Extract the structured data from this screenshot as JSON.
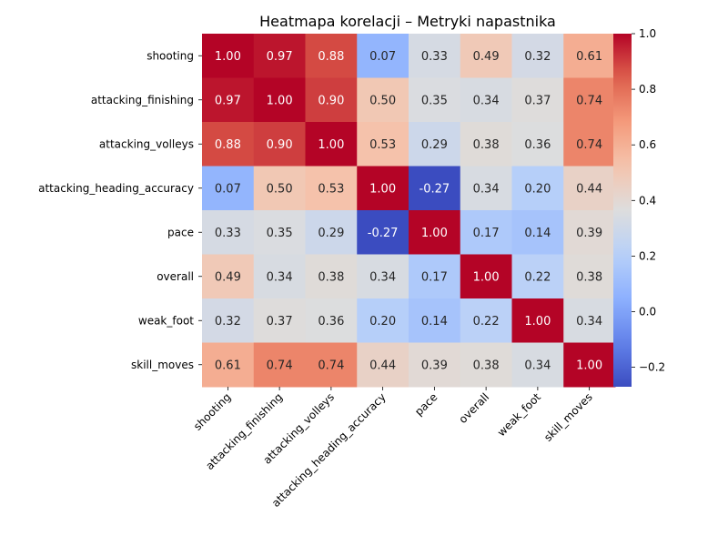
{
  "chart_data": {
    "type": "heatmap",
    "title": "Heatmapa korelacji – Metryki napastnika",
    "rows": [
      "shooting",
      "attacking_finishing",
      "attacking_volleys",
      "attacking_heading_accuracy",
      "pace",
      "overall",
      "weak_foot",
      "skill_moves"
    ],
    "columns": [
      "shooting",
      "attacking_finishing",
      "attacking_volleys",
      "attacking_heading_accuracy",
      "pace",
      "overall",
      "weak_foot",
      "skill_moves"
    ],
    "values": [
      [
        1.0,
        0.97,
        0.88,
        0.07,
        0.33,
        0.49,
        0.32,
        0.61
      ],
      [
        0.97,
        1.0,
        0.9,
        0.5,
        0.35,
        0.34,
        0.37,
        0.74
      ],
      [
        0.88,
        0.9,
        1.0,
        0.53,
        0.29,
        0.38,
        0.36,
        0.74
      ],
      [
        0.07,
        0.5,
        0.53,
        1.0,
        -0.27,
        0.34,
        0.2,
        0.44
      ],
      [
        0.33,
        0.35,
        0.29,
        -0.27,
        1.0,
        0.17,
        0.14,
        0.39
      ],
      [
        0.49,
        0.34,
        0.38,
        0.34,
        0.17,
        1.0,
        0.22,
        0.38
      ],
      [
        0.32,
        0.37,
        0.36,
        0.2,
        0.14,
        0.22,
        1.0,
        0.34
      ],
      [
        0.61,
        0.74,
        0.74,
        0.44,
        0.39,
        0.38,
        0.34,
        1.0
      ]
    ],
    "value_format": "2 decimals",
    "colormap": "coolwarm",
    "vmin": -0.27,
    "vmax": 1.0,
    "colorbar_ticks": [
      -0.2,
      0.0,
      0.2,
      0.4,
      0.6,
      0.8,
      1.0
    ],
    "colorbar_tick_labels": [
      "−0.2",
      "0.0",
      "0.2",
      "0.4",
      "0.6",
      "0.8",
      "1.0"
    ],
    "x_tick_rotation_deg": 45,
    "grid": false,
    "legend": "colorbar-right"
  }
}
